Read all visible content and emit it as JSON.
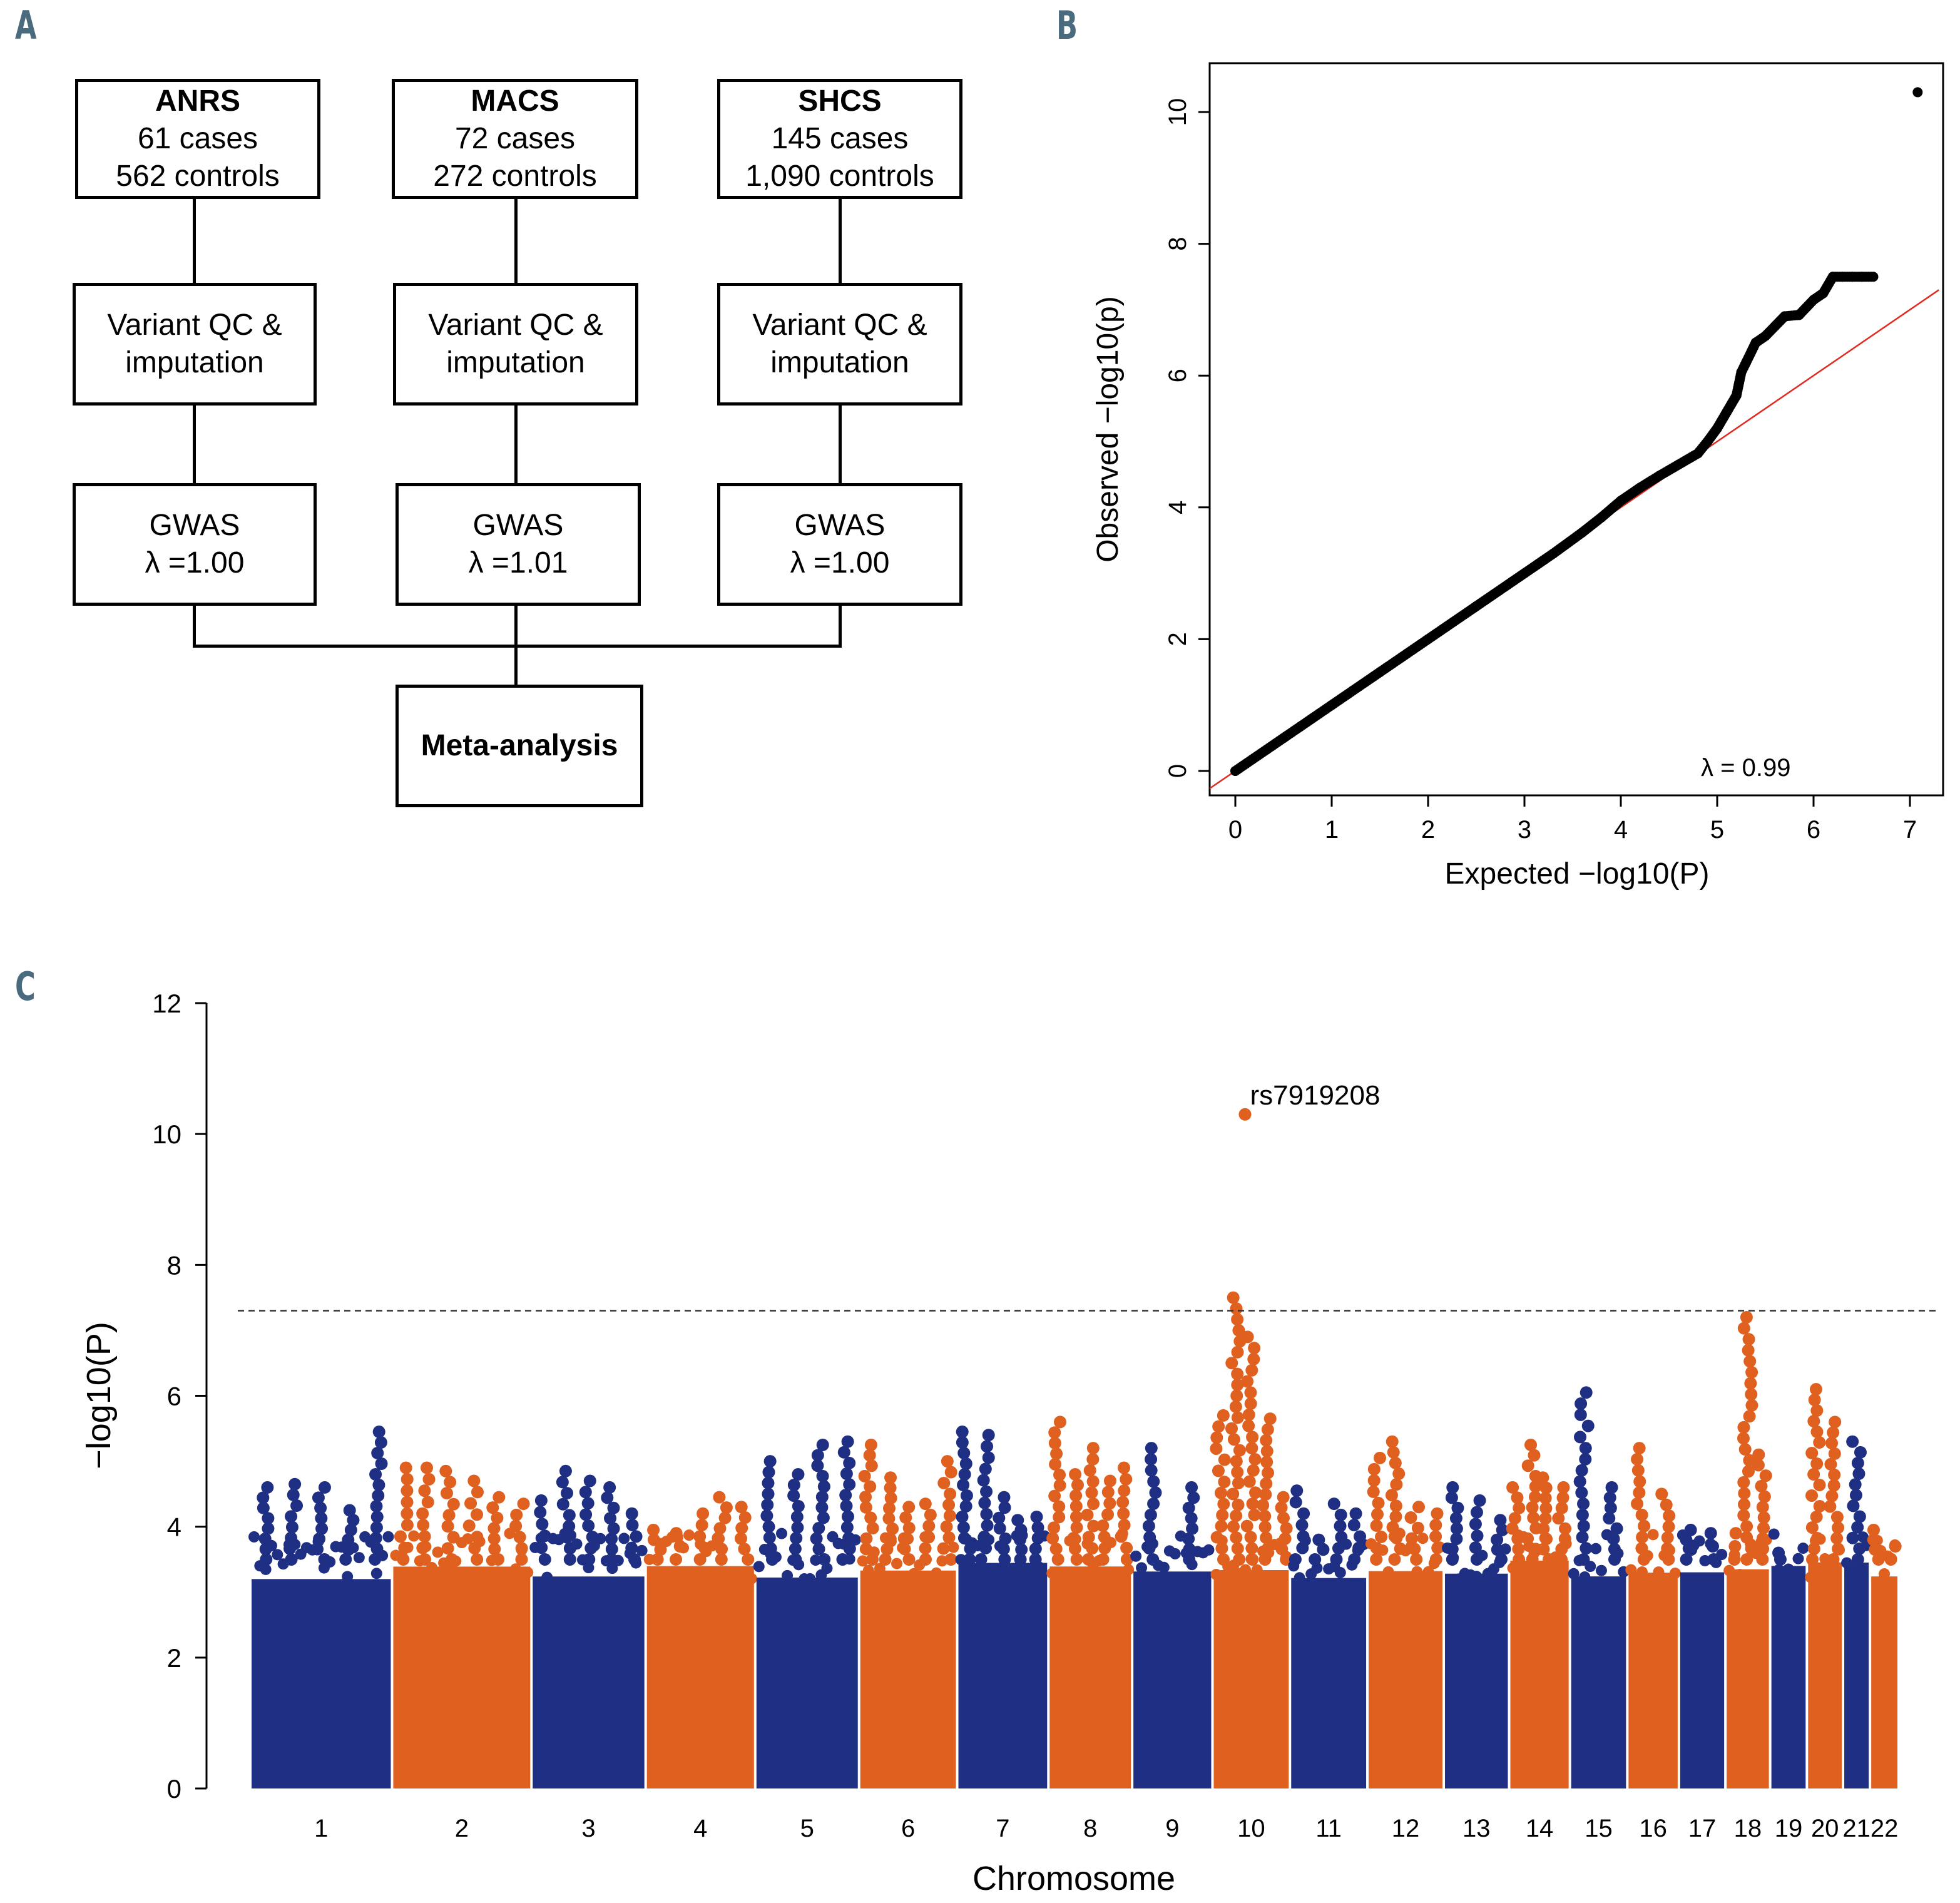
{
  "panels": {
    "a": "A",
    "b": "B",
    "c": "C"
  },
  "flowchart": {
    "cohorts": [
      {
        "name": "ANRS",
        "cases": "61 cases",
        "controls": "562 controls",
        "qc": [
          "Variant QC &",
          "imputation"
        ],
        "gwas": "GWAS",
        "lambda": "λ =1.00"
      },
      {
        "name": "MACS",
        "cases": "72 cases",
        "controls": "272 controls",
        "qc": [
          "Variant QC &",
          "imputation"
        ],
        "gwas": "GWAS",
        "lambda": "λ =1.01"
      },
      {
        "name": "SHCS",
        "cases": "145 cases",
        "controls": "1,090 controls",
        "qc": [
          "Variant QC &",
          "imputation"
        ],
        "gwas": "GWAS",
        "lambda": "λ =1.00"
      }
    ],
    "meta": "Meta-analysis"
  },
  "chart_data": [
    {
      "type": "scatter",
      "xlabel": "Expected −log10(P)",
      "ylabel": "Observed −log10(p)",
      "xlim": [
        -0.3,
        7.3
      ],
      "ylim": [
        -0.3,
        10.7
      ],
      "xticks": [
        "0",
        "1",
        "2",
        "3",
        "4",
        "5",
        "6",
        "7"
      ],
      "yticks": [
        "0",
        "2",
        "4",
        "6",
        "8",
        "10"
      ],
      "annotation": "λ = 0.99",
      "reference_line": {
        "slope": 1,
        "intercept": 0,
        "color": "#e0281e"
      },
      "points": [
        [
          0,
          0
        ],
        [
          0.5,
          0.5
        ],
        [
          1,
          1
        ],
        [
          1.5,
          1.5
        ],
        [
          2,
          2
        ],
        [
          2.5,
          2.5
        ],
        [
          3,
          3
        ],
        [
          3.3,
          3.3
        ],
        [
          3.6,
          3.62
        ],
        [
          3.8,
          3.85
        ],
        [
          4.0,
          4.1
        ],
        [
          4.2,
          4.3
        ],
        [
          4.4,
          4.48
        ],
        [
          4.6,
          4.65
        ],
        [
          4.8,
          4.82
        ],
        [
          4.9,
          5.0
        ],
        [
          5.0,
          5.2
        ],
        [
          5.1,
          5.45
        ],
        [
          5.2,
          5.7
        ],
        [
          5.25,
          6.05
        ],
        [
          5.3,
          6.2
        ],
        [
          5.4,
          6.5
        ],
        [
          5.5,
          6.6
        ],
        [
          5.6,
          6.75
        ],
        [
          5.7,
          6.9
        ],
        [
          5.85,
          6.92
        ],
        [
          6.0,
          7.15
        ],
        [
          6.1,
          7.25
        ],
        [
          6.2,
          7.5
        ],
        [
          6.3,
          7.5
        ],
        [
          6.4,
          7.5
        ],
        [
          6.5,
          7.5
        ],
        [
          6.62,
          7.5
        ],
        [
          7.08,
          10.3
        ]
      ]
    },
    {
      "type": "scatter",
      "xlabel": "Chromosome",
      "ylabel": "−log10(P)",
      "ylim": [
        0,
        12
      ],
      "yticks": [
        "0",
        "2",
        "4",
        "6",
        "8",
        "10",
        "12"
      ],
      "significance_threshold": 7.3,
      "colors": {
        "odd": "#1f3084",
        "even": "#e0601f"
      },
      "annotation": {
        "label": "rs7919208",
        "chromosome": "10",
        "value": 10.3
      },
      "chromosomes": [
        {
          "label": "1",
          "peaks": [
            4.6,
            4.65,
            4.6,
            4.25,
            5.45
          ]
        },
        {
          "label": "2",
          "peaks": [
            4.9,
            4.9,
            4.85,
            4.7,
            4.45,
            4.35
          ]
        },
        {
          "label": "3",
          "peaks": [
            4.4,
            4.85,
            4.7,
            4.6,
            4.2
          ]
        },
        {
          "label": "4",
          "peaks": [
            3.95,
            3.9,
            4.2,
            4.45,
            4.3
          ]
        },
        {
          "label": "5",
          "peaks": [
            5.0,
            4.8,
            5.25,
            5.3
          ]
        },
        {
          "label": "6",
          "peaks": [
            5.25,
            4.75,
            4.3,
            4.35,
            5.0
          ]
        },
        {
          "label": "7",
          "peaks": [
            5.45,
            5.4,
            4.45,
            4.1,
            4.15
          ]
        },
        {
          "label": "8",
          "peaks": [
            5.6,
            4.8,
            5.2,
            4.7,
            4.9
          ]
        },
        {
          "label": "9",
          "peaks": [
            5.2,
            4.6
          ]
        },
        {
          "label": "10",
          "peaks": [
            5.7,
            7.5,
            6.9,
            5.65,
            4.45
          ]
        },
        {
          "label": "11",
          "peaks": [
            4.55,
            3.8,
            4.35,
            4.2
          ]
        },
        {
          "label": "12",
          "peaks": [
            5.05,
            5.3,
            4.3,
            4.2
          ]
        },
        {
          "label": "13",
          "peaks": [
            4.6,
            4.4,
            4.1
          ]
        },
        {
          "label": "14",
          "peaks": [
            4.6,
            5.25,
            4.75,
            4.6
          ]
        },
        {
          "label": "15",
          "peaks": [
            6.05,
            4.6
          ]
        },
        {
          "label": "16",
          "peaks": [
            5.2,
            4.5
          ]
        },
        {
          "label": "17",
          "peaks": [
            3.95,
            3.9
          ]
        },
        {
          "label": "18",
          "peaks": [
            3.9,
            7.2,
            5.1
          ]
        },
        {
          "label": "19",
          "peaks": [
            3.6,
            3.4
          ]
        },
        {
          "label": "20",
          "peaks": [
            6.1,
            5.6
          ]
        },
        {
          "label": "21",
          "peaks": [
            5.3
          ]
        },
        {
          "label": "22",
          "peaks": [
            3.95,
            3.7
          ]
        }
      ]
    }
  ]
}
